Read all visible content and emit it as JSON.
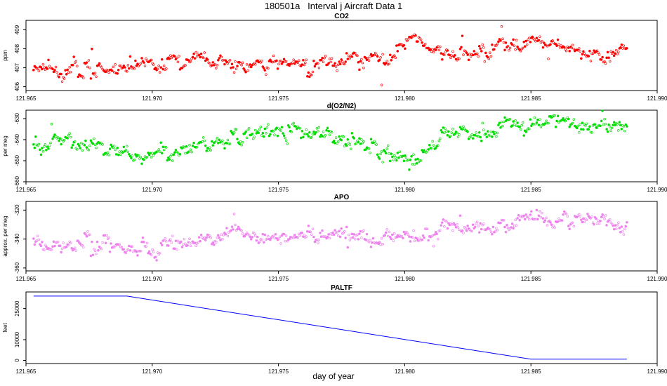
{
  "title": "180501a   Interval j Aircraft Data 1",
  "xlabel": "day of year",
  "colors": {
    "co2": "#ff0000",
    "o2n2": "#00dd00",
    "apo": "#ee82ee",
    "paltf": "#0000ff"
  },
  "chart_data": [
    {
      "type": "scatter",
      "title": "CO2",
      "ylabel": "ppm",
      "xlim": [
        121.965,
        121.99
      ],
      "ylim": [
        405.8,
        409.5
      ],
      "x_ticks": [
        "121.965",
        "121.970",
        "121.975",
        "121.980",
        "121.985",
        "121.990"
      ],
      "y_ticks": [
        "406",
        "407",
        "408",
        "409"
      ],
      "x_range": [
        121.9653,
        121.9888
      ],
      "series": [
        {
          "name": "CO2",
          "trend": {
            "x": [
              121.9653,
              121.966,
              121.968,
              121.97,
              121.972,
              121.975,
              121.978,
              121.9795,
              121.9803,
              121.981,
              121.982,
              121.984,
              121.9855,
              121.987,
              121.9888
            ],
            "y": [
              406.95,
              406.85,
              406.9,
              407.2,
              407.5,
              407.1,
              407.4,
              407.7,
              408.65,
              408.0,
              407.7,
              408.2,
              408.4,
              407.9,
              407.6
            ]
          },
          "noise": 0.22
        }
      ]
    },
    {
      "type": "scatter",
      "title": "d(O2/N2)",
      "ylabel": "per meg",
      "xlim": [
        121.965,
        121.99
      ],
      "ylim": [
        -660,
        -626
      ],
      "x_ticks": [
        "121.965",
        "121.970",
        "121.975",
        "121.980",
        "121.985",
        "121.990"
      ],
      "y_ticks": [
        "-660",
        "-650",
        "-640",
        "-630"
      ],
      "x_range": [
        121.9653,
        121.9888
      ],
      "series": [
        {
          "name": "d(O2/N2)",
          "trend": {
            "x": [
              121.9653,
              121.966,
              121.968,
              121.9695,
              121.971,
              121.9725,
              121.975,
              121.9775,
              121.979,
              121.9805,
              121.9815,
              121.983,
              121.985,
              121.987,
              121.9888
            ],
            "y": [
              -644,
              -640,
              -644,
              -648,
              -646,
              -640,
              -635,
              -639,
              -645,
              -651,
              -637,
              -638,
              -632,
              -633,
              -633
            ]
          },
          "noise": 2.2
        }
      ]
    },
    {
      "type": "scatter",
      "title": "APO",
      "ylabel": "approx. per meg",
      "xlim": [
        121.965,
        121.99
      ],
      "ylim": [
        -362,
        -314
      ],
      "x_ticks": [
        "121.965",
        "121.970",
        "121.975",
        "121.980",
        "121.985",
        "121.990"
      ],
      "y_ticks": [
        "-360",
        "-340",
        "-320"
      ],
      "x_range": [
        121.9653,
        121.9888
      ],
      "series": [
        {
          "name": "APO",
          "trend": {
            "x": [
              121.9653,
              121.967,
              121.9685,
              121.97,
              121.9725,
              121.975,
              121.978,
              121.9805,
              121.9815,
              121.983,
              121.985,
              121.987,
              121.9888
            ],
            "y": [
              -344,
              -343,
              -345,
              -348,
              -338,
              -337,
              -338,
              -341,
              -332,
              -332,
              -325,
              -328,
              -329
            ]
          },
          "noise": 3.0
        }
      ]
    },
    {
      "type": "line",
      "title": "PALTF",
      "ylabel": "feet",
      "xlim": [
        121.965,
        121.99
      ],
      "ylim": [
        -1500,
        33000
      ],
      "x_ticks": [
        "121.965",
        "121.970",
        "121.975",
        "121.980",
        "121.985",
        "121.990"
      ],
      "y_ticks": [
        "0",
        "10000",
        "25000"
      ],
      "y_tick_values": [
        0,
        10000,
        25000
      ],
      "series": [
        {
          "name": "PALTF",
          "x": [
            121.9653,
            121.969,
            121.985,
            121.9888
          ],
          "y": [
            31000,
            31000,
            600,
            600
          ]
        }
      ]
    }
  ]
}
